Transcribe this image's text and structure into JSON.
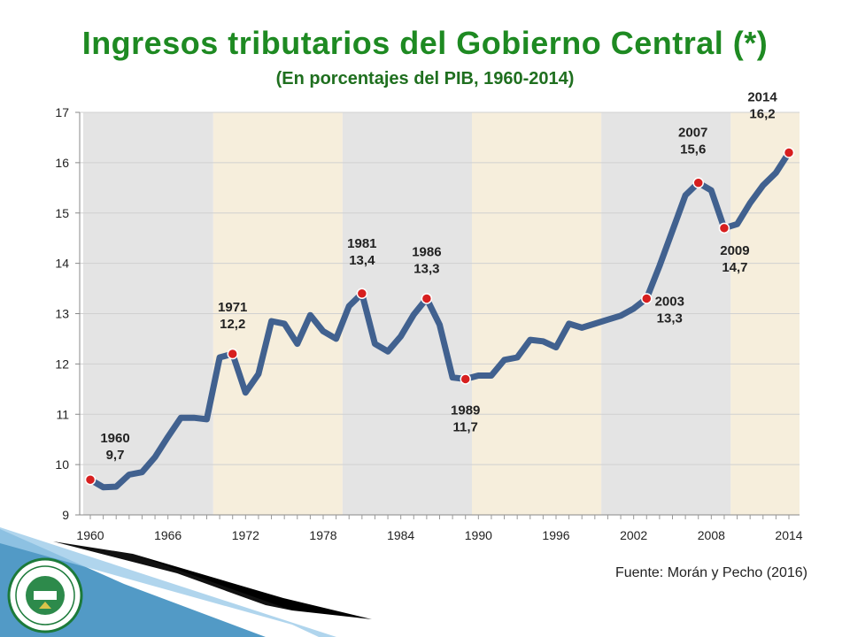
{
  "header": {
    "title": "Ingresos tributarios del Gobierno Central (*)",
    "subtitle": "(En porcentajes del PIB, 1960-2014)"
  },
  "footer": {
    "source": "Fuente: Morán y Pecho (2016)"
  },
  "colors": {
    "title": "#1e8a22",
    "line": "#41618f",
    "marker": "#d71f1f",
    "band_gray": "#e4e4e4",
    "band_beige": "#f6eedc"
  },
  "chart_data": {
    "type": "line",
    "xlim": [
      1960,
      2014
    ],
    "ylim": [
      9,
      17
    ],
    "x_ticks": [
      1960,
      1966,
      1972,
      1978,
      1984,
      1990,
      1996,
      2002,
      2008,
      2014
    ],
    "y_ticks": [
      9,
      10,
      11,
      12,
      13,
      14,
      15,
      16,
      17
    ],
    "grid": true,
    "bands": [
      {
        "from": 1960,
        "to": 1970,
        "color": "gray"
      },
      {
        "from": 1970,
        "to": 1980,
        "color": "beige"
      },
      {
        "from": 1980,
        "to": 1990,
        "color": "gray"
      },
      {
        "from": 1990,
        "to": 2000,
        "color": "beige"
      },
      {
        "from": 2000,
        "to": 2010,
        "color": "gray"
      },
      {
        "from": 2010,
        "to": 2014,
        "color": "beige"
      }
    ],
    "series": [
      {
        "x": [
          1960,
          1961,
          1962,
          1963,
          1964,
          1965,
          1966,
          1967,
          1968,
          1969,
          1970,
          1971,
          1972,
          1973,
          1974,
          1975,
          1976,
          1977,
          1978,
          1979,
          1980,
          1981,
          1982,
          1983,
          1984,
          1985,
          1986,
          1987,
          1988,
          1989,
          1990,
          1991,
          1992,
          1993,
          1994,
          1995,
          1996,
          1997,
          1998,
          1999,
          2000,
          2001,
          2002,
          2003,
          2004,
          2005,
          2006,
          2007,
          2008,
          2009,
          2010,
          2011,
          2012,
          2013,
          2014
        ],
        "y": [
          9.7,
          9.55,
          9.56,
          9.8,
          9.85,
          10.15,
          10.55,
          10.93,
          10.93,
          10.9,
          12.13,
          12.2,
          11.43,
          11.8,
          12.85,
          12.8,
          12.4,
          12.97,
          12.65,
          12.5,
          13.15,
          13.4,
          12.4,
          12.25,
          12.55,
          12.98,
          13.3,
          12.78,
          11.73,
          11.7,
          11.77,
          11.77,
          12.08,
          12.13,
          12.48,
          12.45,
          12.33,
          12.8,
          12.72,
          12.8,
          12.88,
          12.96,
          13.1,
          13.3,
          13.95,
          14.65,
          15.35,
          15.6,
          15.45,
          14.7,
          14.78,
          15.2,
          15.55,
          15.8,
          16.2
        ]
      }
    ],
    "annotations": [
      {
        "year": "1960",
        "value": "9,7",
        "x": 1960,
        "y": 9.7
      },
      {
        "year": "1971",
        "value": "12,2",
        "x": 1971,
        "y": 12.2
      },
      {
        "year": "1981",
        "value": "13,4",
        "x": 1981,
        "y": 13.4
      },
      {
        "year": "1986",
        "value": "13,3",
        "x": 1986,
        "y": 13.3
      },
      {
        "year": "1989",
        "value": "11,7",
        "x": 1989,
        "y": 11.7
      },
      {
        "year": "2003",
        "value": "13,3",
        "x": 2003,
        "y": 13.3
      },
      {
        "year": "2007",
        "value": "15,6",
        "x": 2007,
        "y": 15.6
      },
      {
        "year": "2009",
        "value": "14,7",
        "x": 2009,
        "y": 14.7
      },
      {
        "year": "2014",
        "value": "16,2",
        "x": 2014,
        "y": 16.2
      }
    ]
  }
}
